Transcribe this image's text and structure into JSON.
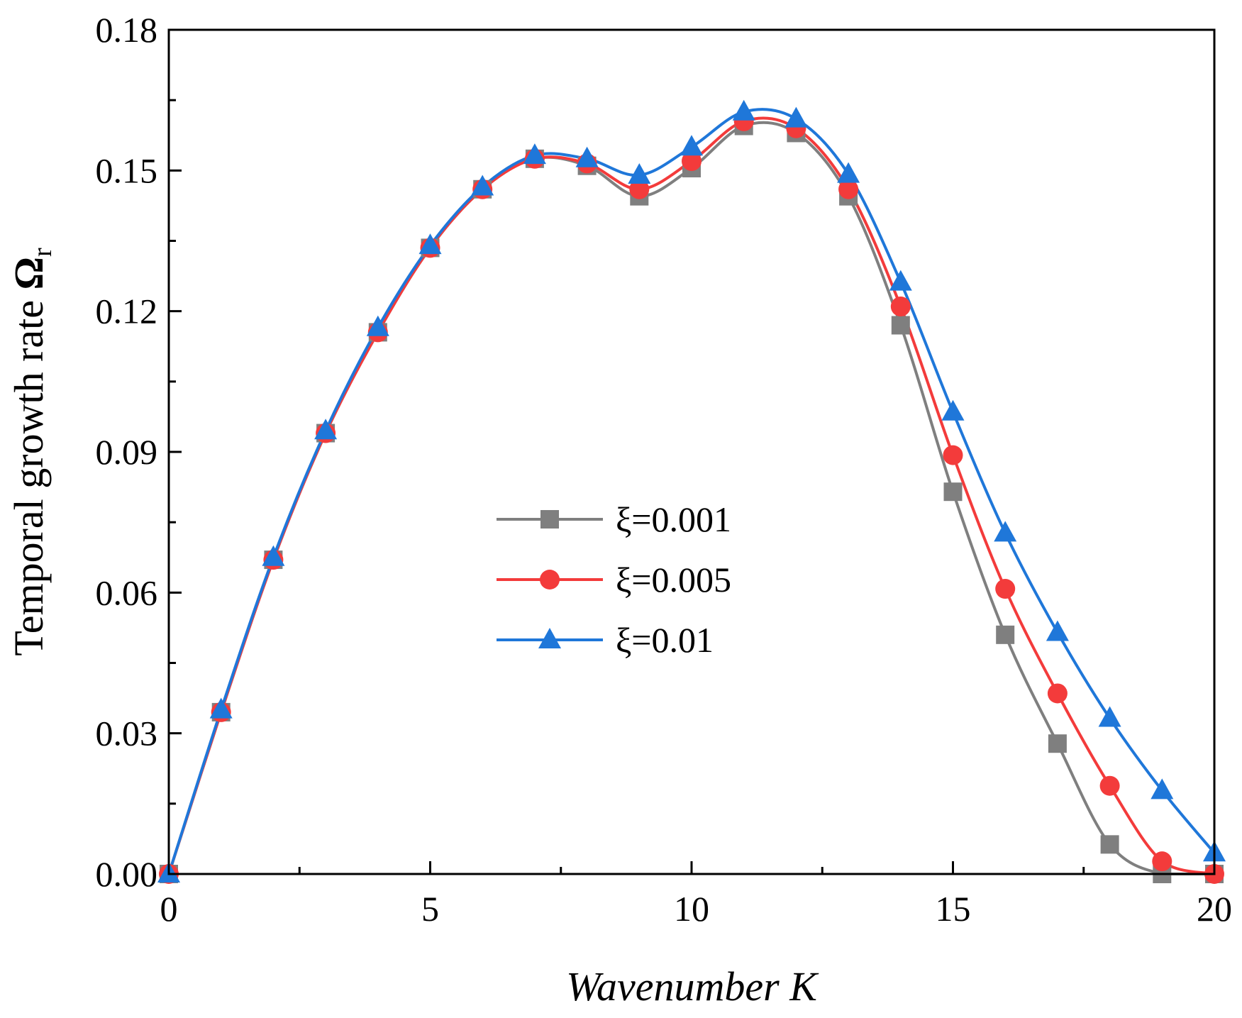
{
  "chart_data": {
    "type": "line",
    "title": "",
    "xlabel": "Wavenumber K",
    "ylabel_main": "Temporal growth rate ",
    "ylabel_symbol": "Ω",
    "ylabel_subscript": "r",
    "xlim": [
      0,
      20
    ],
    "ylim": [
      0,
      0.18
    ],
    "x_ticks": [
      0,
      5,
      10,
      15,
      20
    ],
    "x_tick_labels": [
      "0",
      "5",
      "10",
      "15",
      "20"
    ],
    "y_ticks": [
      0,
      0.03,
      0.06,
      0.09,
      0.12,
      0.15,
      0.18
    ],
    "y_tick_labels": [
      "0.00",
      "0.03",
      "0.06",
      "0.09",
      "0.12",
      "0.15",
      "0.18"
    ],
    "grid": false,
    "legend_position": "center",
    "x": [
      0,
      1,
      2,
      3,
      4,
      5,
      6,
      7,
      8,
      9,
      10,
      11,
      12,
      13,
      14,
      15,
      16,
      17,
      18,
      19,
      20
    ],
    "series": [
      {
        "name": "ξ=0.001",
        "color": "#7f7f7f",
        "marker": "square",
        "values": [
          0.0,
          0.0345,
          0.067,
          0.094,
          0.1155,
          0.1335,
          0.146,
          0.1525,
          0.151,
          0.1445,
          0.1505,
          0.1595,
          0.158,
          0.1445,
          0.117,
          0.0815,
          0.051,
          0.0278,
          0.0063,
          0.0,
          0.0
        ]
      },
      {
        "name": "ξ=0.005",
        "color": "#f33b3b",
        "marker": "circle",
        "values": [
          0.0,
          0.0345,
          0.067,
          0.094,
          0.1155,
          0.1335,
          0.146,
          0.1525,
          0.1515,
          0.146,
          0.152,
          0.1605,
          0.159,
          0.146,
          0.121,
          0.0893,
          0.0608,
          0.0385,
          0.0188,
          0.0027,
          0.0
        ]
      },
      {
        "name": "ξ=0.01",
        "color": "#1f77d9",
        "marker": "triangle",
        "values": [
          0.0,
          0.035,
          0.0675,
          0.0945,
          0.1165,
          0.134,
          0.1465,
          0.1532,
          0.1525,
          0.149,
          0.155,
          0.1625,
          0.161,
          0.1492,
          0.1262,
          0.0985,
          0.0727,
          0.0515,
          0.0332,
          0.0178,
          0.0045
        ]
      }
    ]
  }
}
